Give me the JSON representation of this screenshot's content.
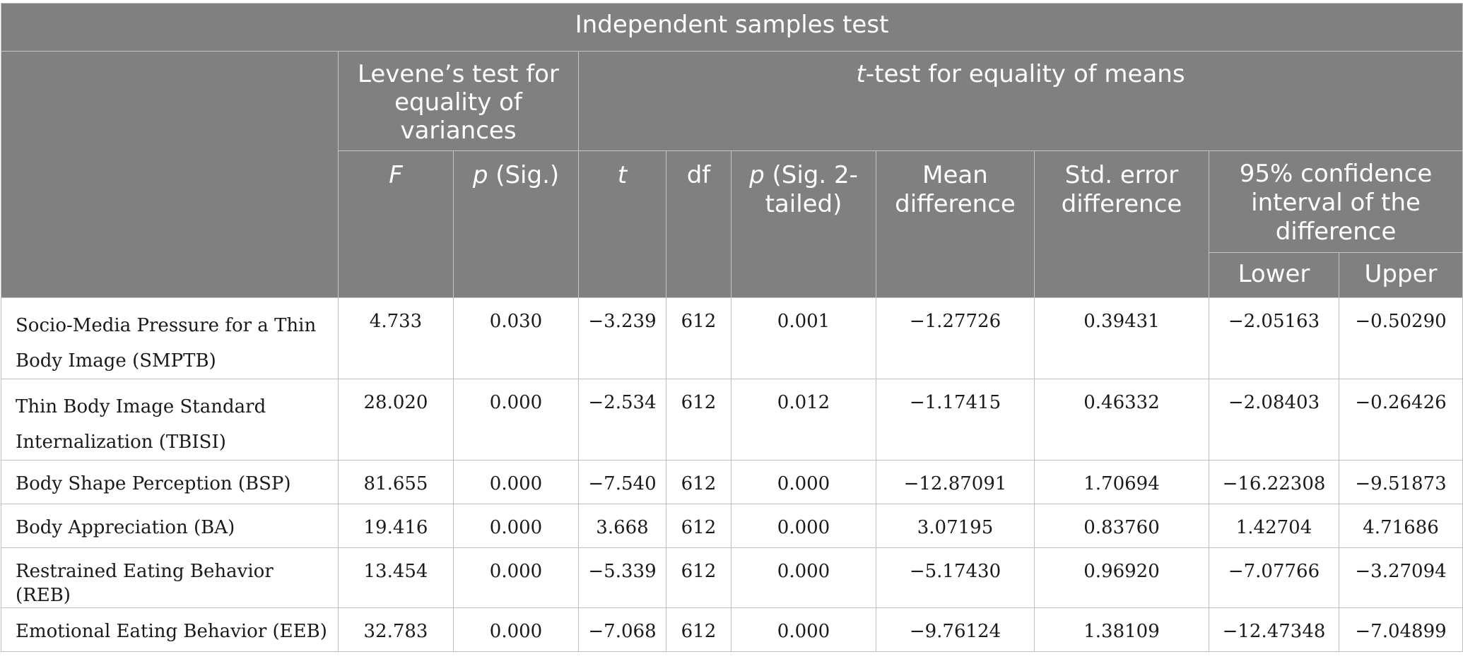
{
  "table": {
    "title": "Independent samples test",
    "group_headers": {
      "levene": "Levene’s test for equality of variances",
      "ttest_italic": "t",
      "ttest_rest": "-test for equality of means"
    },
    "columns": {
      "F": "F",
      "p_sig_italic": "p",
      "p_sig_rest": " (Sig.)",
      "t": "t",
      "df": "df",
      "p_2tailed_italic": "p",
      "p_2tailed_rest": " (Sig. 2-tailed)",
      "mean_diff": "Mean difference",
      "se_diff": "Std. error difference",
      "ci": "95% confidence interval of the difference",
      "lower": "Lower",
      "upper": "Upper"
    },
    "rows": [
      {
        "label": "Socio-Media Pressure for a Thin Body Image (SMPTB)",
        "F": "4.733",
        "p": "0.030",
        "t": "−3.239",
        "df": "612",
        "p2": "0.001",
        "md": "−1.27726",
        "se": "0.39431",
        "lower": "−2.05163",
        "upper": "−0.50290"
      },
      {
        "label": "Thin Body Image Standard Internalization (TBISI)",
        "F": "28.020",
        "p": "0.000",
        "t": "−2.534",
        "df": "612",
        "p2": "0.012",
        "md": "−1.17415",
        "se": "0.46332",
        "lower": "−2.08403",
        "upper": "−0.26426"
      },
      {
        "label": "Body Shape Perception (BSP)",
        "F": "81.655",
        "p": "0.000",
        "t": "−7.540",
        "df": "612",
        "p2": "0.000",
        "md": "−12.87091",
        "se": "1.70694",
        "lower": "−16.22308",
        "upper": "−9.51873"
      },
      {
        "label": "Body Appreciation (BA)",
        "F": "19.416",
        "p": "0.000",
        "t": "3.668",
        "df": "612",
        "p2": "0.000",
        "md": "3.07195",
        "se": "0.83760",
        "lower": "1.42704",
        "upper": "4.71686"
      },
      {
        "label": "Restrained Eating Behavior (REB)",
        "F": "13.454",
        "p": "0.000",
        "t": "−5.339",
        "df": "612",
        "p2": "0.000",
        "md": "−5.17430",
        "se": "0.96920",
        "lower": "−7.07766",
        "upper": "−3.27094"
      },
      {
        "label": "Emotional Eating Behavior (EEB)",
        "F": "32.783",
        "p": "0.000",
        "t": "−7.068",
        "df": "612",
        "p2": "0.000",
        "md": "−9.76124",
        "se": "1.38109",
        "lower": "−12.47348",
        "upper": "−7.04899"
      }
    ]
  }
}
